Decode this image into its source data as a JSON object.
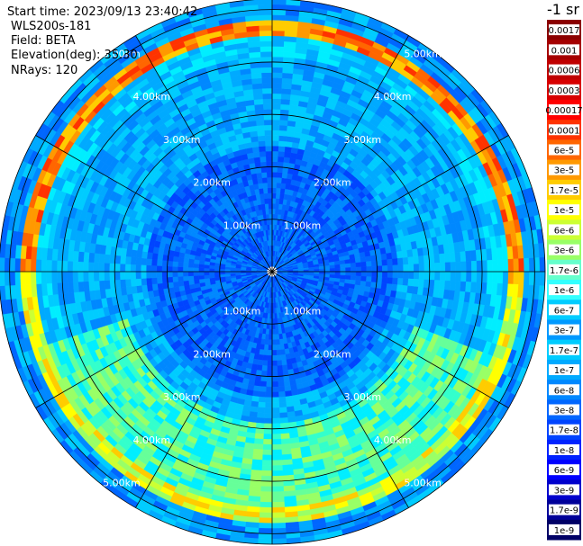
{
  "header": {
    "start_time": "Start time: 2023/09/13 23:40:42",
    "instrument": "WLS200s-181",
    "field": "Field: BETA",
    "elevation": "Elevation(deg): 35.30",
    "nrays": "NRays: 120"
  },
  "chart_data": {
    "type": "heatmap",
    "projection": "polar",
    "range_rings_km": [
      1,
      2,
      3,
      4,
      5
    ],
    "ring_labels": [
      "1.00km",
      "2.00km",
      "3.00km",
      "4.00km",
      "5.00km"
    ],
    "max_range_km": 5.2,
    "spokes_deg": [
      0,
      30,
      60,
      90,
      120,
      150,
      180,
      210,
      240,
      270,
      300,
      330
    ],
    "nrays": 120,
    "range_gates": 52,
    "grid": true,
    "legend_position": "right",
    "colorbar": {
      "unit_label": "-1 sr",
      "ticks": [
        "0.0017",
        "0.001",
        "0.0006",
        "0.0003",
        "0.00017",
        "0.0001",
        "6e-5",
        "3e-5",
        "1.7e-5",
        "1e-5",
        "6e-6",
        "3e-6",
        "1.7e-6",
        "1e-6",
        "6e-7",
        "3e-7",
        "1.7e-7",
        "1e-7",
        "6e-8",
        "3e-8",
        "1.7e-8",
        "1e-8",
        "6e-9",
        "3e-9",
        "1.7e-9",
        "1e-9"
      ],
      "colors": [
        "#8b0000",
        "#a50000",
        "#c00000",
        "#d80000",
        "#ff0000",
        "#ff3300",
        "#ff6600",
        "#ff9900",
        "#ffcc00",
        "#ffff00",
        "#ccff33",
        "#99ff66",
        "#66ffcc",
        "#33ffff",
        "#00ccff",
        "#0099ff",
        "#00ccff",
        "#00aaff",
        "#0088ff",
        "#0066ff",
        "#0044ff",
        "#0022ff",
        "#0000ff",
        "#0000cc",
        "#000099",
        "#000066"
      ]
    }
  }
}
